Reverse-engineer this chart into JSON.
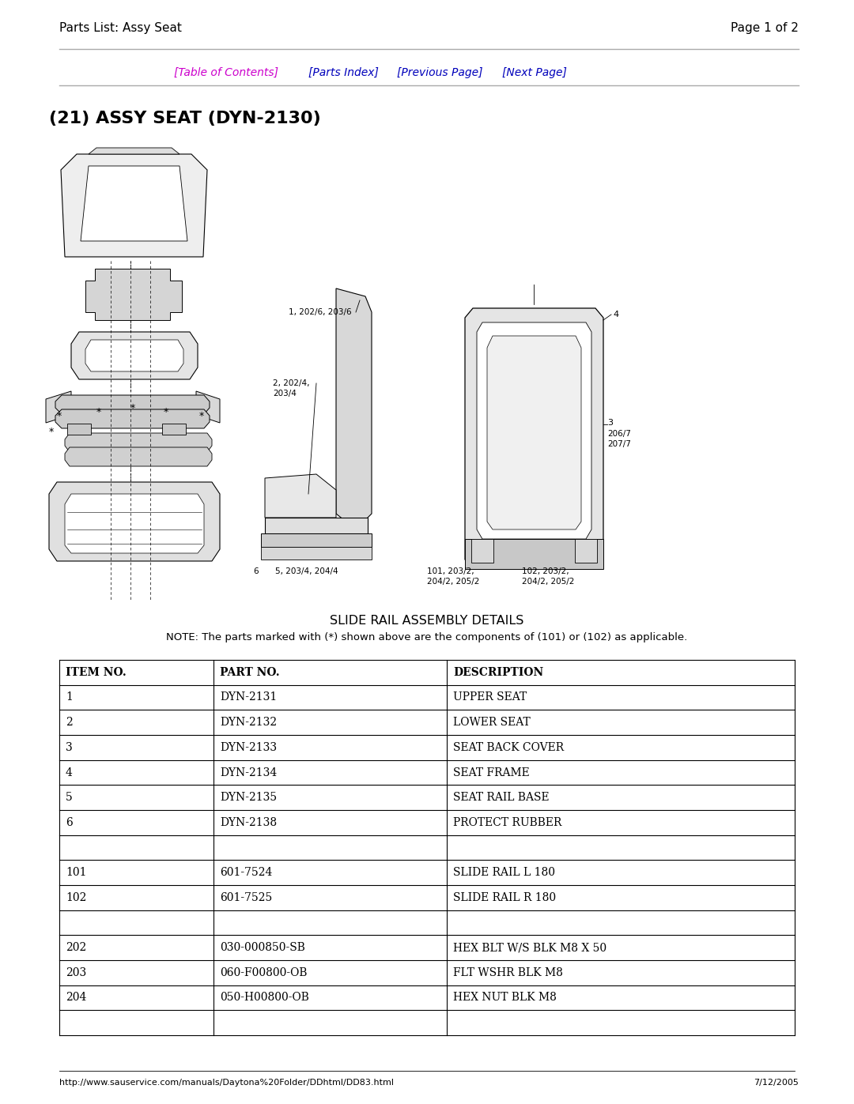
{
  "page_title_left": "Parts List: Assy Seat",
  "page_title_right": "Page 1 of 2",
  "nav_toc": "[Table of Contents]",
  "nav_parts": "[Parts Index]",
  "nav_prev": "[Previous Page]",
  "nav_next": "[Next Page]",
  "section_title": "(21) ASSY SEAT (DYN-2130)",
  "slide_rail_title": "SLIDE RAIL ASSEMBLY DETAILS",
  "note_text": "NOTE: The parts marked with (*) shown above are the components of (101) or (102) as applicable.",
  "footer_url": "http://www.sauservice.com/manuals/Daytona%20Folder/DDhtml/DD83.html",
  "footer_date": "7/12/2005",
  "table_headers": [
    "ITEM NO.",
    "PART NO.",
    "DESCRIPTION"
  ],
  "table_rows": [
    [
      "1",
      "DYN-2131",
      "UPPER SEAT"
    ],
    [
      "2",
      "DYN-2132",
      "LOWER SEAT"
    ],
    [
      "3",
      "DYN-2133",
      "SEAT BACK COVER"
    ],
    [
      "4",
      "DYN-2134",
      "SEAT FRAME"
    ],
    [
      "5",
      "DYN-2135",
      "SEAT RAIL BASE"
    ],
    [
      "6",
      "DYN-2138",
      "PROTECT RUBBER"
    ],
    [
      "",
      "",
      ""
    ],
    [
      "101",
      "601-7524",
      "SLIDE RAIL L 180"
    ],
    [
      "102",
      "601-7525",
      "SLIDE RAIL R 180"
    ],
    [
      "",
      "",
      ""
    ],
    [
      "202",
      "030-000850-SB",
      "HEX BLT W/S BLK M8 X 50"
    ],
    [
      "203",
      "060-F00800-OB",
      "FLT WSHR BLK M8"
    ],
    [
      "204",
      "050-H00800-OB",
      "HEX NUT BLK M8"
    ],
    [
      "",
      "",
      ""
    ]
  ],
  "bg_color": "#ffffff",
  "text_color": "#000000",
  "nav_color_toc": "#cc00cc",
  "nav_color_other": "#0000bb"
}
